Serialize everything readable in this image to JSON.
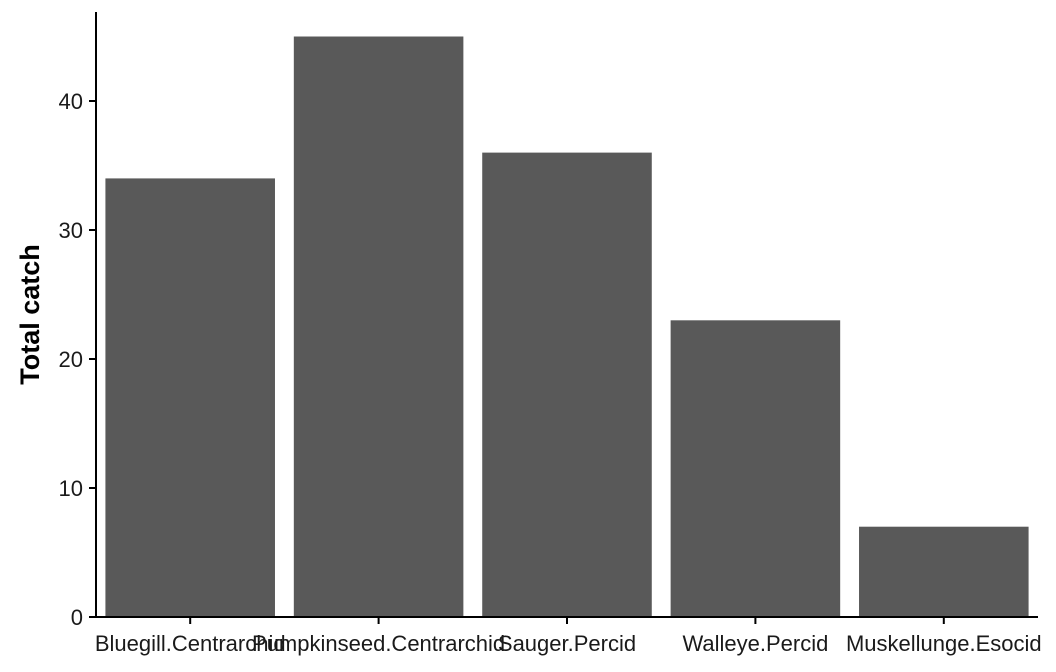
{
  "chart_data": {
    "type": "bar",
    "title": "",
    "xlabel": "",
    "ylabel": "Total catch",
    "categories": [
      "Bluegill.Centrarchid",
      "Pumpkinseed.Centrarchid",
      "Sauger.Percid",
      "Walleye.Percid",
      "Muskellunge.Esocid"
    ],
    "values": [
      34,
      45,
      36,
      23,
      7
    ],
    "ylim": [
      0,
      46.9
    ],
    "yticks": [
      0,
      10,
      20,
      30,
      40
    ],
    "grid": false,
    "legend": "none",
    "bar_color": "#595959",
    "axis_color": "#000000"
  }
}
